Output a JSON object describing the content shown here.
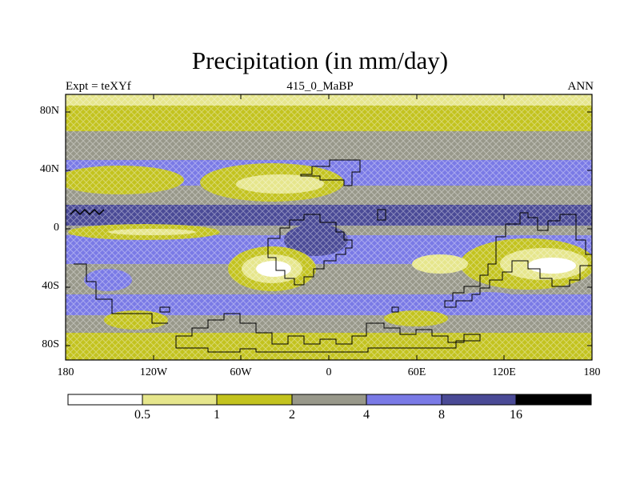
{
  "title": "Precipitation (in mm/day)",
  "subtitle_left": "Expt = teXYf",
  "subtitle_center": "415_0_MaBP",
  "subtitle_right": "ANN",
  "lat_labels": [
    "80N",
    "40N",
    "0",
    "40S",
    "80S"
  ],
  "lon_labels": [
    "180",
    "120W",
    "60W",
    "0",
    "60E",
    "120E",
    "180"
  ],
  "colorbar": {
    "labels": [
      "0.5",
      "1",
      "2",
      "4",
      "8",
      "16"
    ],
    "colors": [
      "#ffffff",
      "#e6e68c",
      "#c3c31e",
      "#98988a",
      "#7a7ae6",
      "#4a4a96",
      "#000000"
    ]
  },
  "colors": {
    "white": "#ffffff",
    "very_light_yellow": "#e6e68c",
    "yellow_olive": "#c3c31e",
    "gray": "#98988a",
    "periwinkle": "#7a7ae6",
    "dark_blue": "#4a4a96",
    "black": "#000000"
  }
}
